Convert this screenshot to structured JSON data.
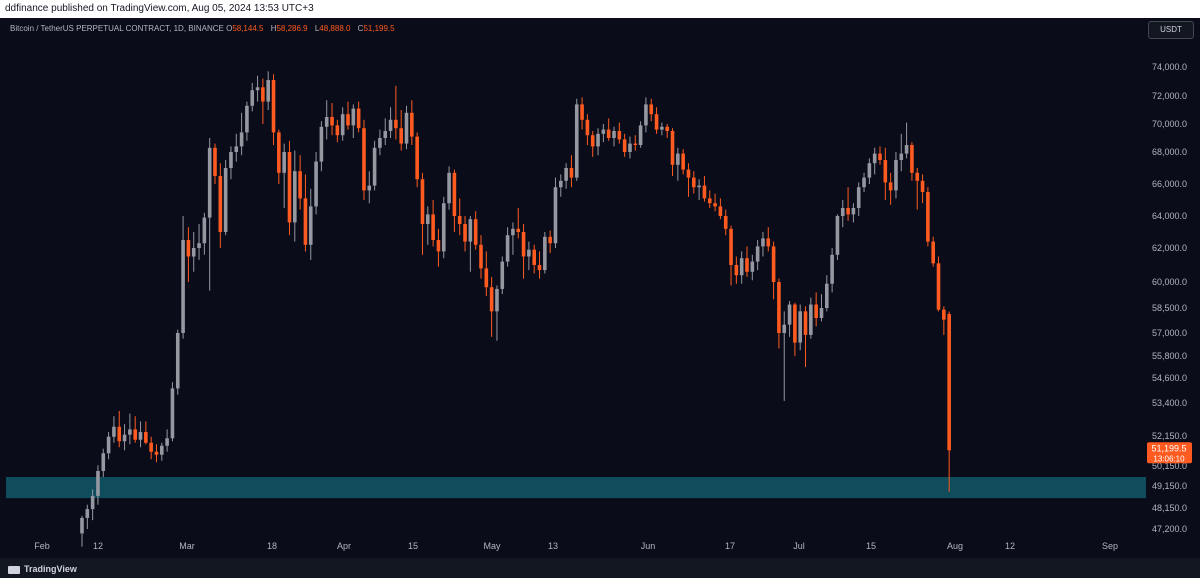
{
  "header": {
    "published_text": "ddfinance published on TradingView.com, Aug 05, 2024 13:53 UTC+3"
  },
  "legend": {
    "symbol": "Bitcoin / TetherUS PERPETUAL CONTRACT, 1D, BINANCE",
    "open_label": "O",
    "open": "58,144.5",
    "high_label": "H",
    "high": "58,286.9",
    "low_label": "L",
    "low": "48,888.0",
    "close_label": "C",
    "close": "51,199.5"
  },
  "currency": "USDT",
  "price_tag": {
    "price": "51,199.5",
    "countdown": "13:06:10"
  },
  "footer": {
    "brand": "TradingView"
  },
  "colors": {
    "up": "#9598a1",
    "down": "#ff5a1f",
    "zone": "#0f4c5c",
    "background": "#0b0c1a"
  },
  "chart_data": {
    "type": "candlestick",
    "title": "Bitcoin / TetherUS PERPETUAL CONTRACT, 1D, BINANCE",
    "x_tick_labels": [
      "Feb",
      "12",
      "Mar",
      "18",
      "Apr",
      "15",
      "May",
      "13",
      "Jun",
      "17",
      "Jul",
      "15",
      "Aug",
      "12",
      "Sep"
    ],
    "y_tick_labels": [
      "74,000.0",
      "72,000.0",
      "70,000.0",
      "68,000.0",
      "66,000.0",
      "64,000.0",
      "62,000.0",
      "60,000.0",
      "58,500.0",
      "57,000.0",
      "55,800.0",
      "54,600.0",
      "53,400.0",
      "52,150.0",
      "50,150.0",
      "49,150.0",
      "48,150.0",
      "47,200.0"
    ],
    "support_zone": [
      48600,
      49600
    ],
    "ohlc": [
      [
        47000,
        47800,
        46400,
        47700
      ],
      [
        47700,
        48300,
        47200,
        48100
      ],
      [
        48100,
        49000,
        47600,
        48700
      ],
      [
        48700,
        50200,
        48300,
        49900
      ],
      [
        49900,
        51300,
        49600,
        51000
      ],
      [
        51000,
        52300,
        50600,
        52100
      ],
      [
        52100,
        52900,
        51700,
        52500
      ],
      [
        52500,
        53100,
        51400,
        51800
      ],
      [
        51800,
        52600,
        51200,
        52200
      ],
      [
        52200,
        53000,
        51600,
        52400
      ],
      [
        52400,
        52900,
        51700,
        51900
      ],
      [
        51900,
        52700,
        51400,
        52300
      ],
      [
        52300,
        52700,
        51600,
        51700
      ],
      [
        51700,
        52100,
        50600,
        51100
      ],
      [
        51100,
        51600,
        50400,
        50900
      ],
      [
        50900,
        51700,
        50500,
        51500
      ],
      [
        51500,
        52400,
        51100,
        52000
      ],
      [
        52000,
        54400,
        51800,
        54100
      ],
      [
        54100,
        57200,
        53800,
        57000
      ],
      [
        57000,
        64000,
        56700,
        62500
      ],
      [
        62500,
        63300,
        60000,
        61500
      ],
      [
        61500,
        63000,
        60600,
        62000
      ],
      [
        62000,
        63500,
        61300,
        62300
      ],
      [
        62300,
        64200,
        61600,
        63900
      ],
      [
        63900,
        69000,
        59500,
        68300
      ],
      [
        68300,
        68600,
        66000,
        66500
      ],
      [
        66500,
        67300,
        62000,
        63000
      ],
      [
        63000,
        67500,
        62800,
        67000
      ],
      [
        67000,
        68400,
        66300,
        68000
      ],
      [
        68000,
        69300,
        67400,
        68400
      ],
      [
        68400,
        70800,
        67800,
        69400
      ],
      [
        69400,
        71600,
        68800,
        71300
      ],
      [
        71300,
        72900,
        70900,
        72400
      ],
      [
        72400,
        73400,
        71600,
        72600
      ],
      [
        72600,
        73200,
        70000,
        71600
      ],
      [
        71600,
        73700,
        71000,
        73100
      ],
      [
        73100,
        73500,
        68500,
        69400
      ],
      [
        69400,
        69600,
        66000,
        66700
      ],
      [
        66700,
        68600,
        64500,
        68000
      ],
      [
        68000,
        68800,
        62800,
        63600
      ],
      [
        63600,
        68100,
        62400,
        66800
      ],
      [
        66800,
        67800,
        64400,
        65100
      ],
      [
        65100,
        66600,
        61800,
        62200
      ],
      [
        62200,
        65700,
        61300,
        64600
      ],
      [
        64600,
        68000,
        64100,
        67400
      ],
      [
        67400,
        70200,
        66800,
        69800
      ],
      [
        69800,
        71700,
        68900,
        70500
      ],
      [
        70500,
        71500,
        69200,
        69900
      ],
      [
        69900,
        70300,
        68700,
        69200
      ],
      [
        69200,
        71200,
        68800,
        70700
      ],
      [
        70700,
        71600,
        69600,
        69900
      ],
      [
        69900,
        71400,
        69000,
        71100
      ],
      [
        71100,
        71600,
        69400,
        69700
      ],
      [
        69700,
        70300,
        65000,
        65600
      ],
      [
        65600,
        66800,
        64800,
        65900
      ],
      [
        65900,
        68800,
        65600,
        68300
      ],
      [
        68300,
        69600,
        67800,
        69000
      ],
      [
        69000,
        70400,
        68500,
        69500
      ],
      [
        69500,
        71200,
        69000,
        70300
      ],
      [
        70300,
        72700,
        68900,
        69700
      ],
      [
        69700,
        71000,
        68100,
        68600
      ],
      [
        68600,
        71300,
        68200,
        70800
      ],
      [
        70800,
        71700,
        68500,
        69100
      ],
      [
        69100,
        69400,
        65800,
        66300
      ],
      [
        66300,
        66700,
        61600,
        63500
      ],
      [
        63500,
        64600,
        62200,
        64100
      ],
      [
        64100,
        65000,
        62100,
        62500
      ],
      [
        62500,
        63200,
        60900,
        61800
      ],
      [
        61800,
        65200,
        61400,
        64800
      ],
      [
        64800,
        67100,
        64400,
        66700
      ],
      [
        66700,
        66900,
        63000,
        64000
      ],
      [
        64000,
        65100,
        62800,
        63500
      ],
      [
        63500,
        64000,
        61800,
        62400
      ],
      [
        62400,
        64000,
        60600,
        63800
      ],
      [
        63800,
        64300,
        61900,
        62200
      ],
      [
        62200,
        62800,
        60200,
        60800
      ],
      [
        60800,
        61800,
        59200,
        59700
      ],
      [
        59700,
        60300,
        56800,
        58300
      ],
      [
        58300,
        59800,
        56600,
        59600
      ],
      [
        59600,
        61500,
        59300,
        61200
      ],
      [
        61200,
        63300,
        60900,
        62800
      ],
      [
        62800,
        63600,
        61600,
        63200
      ],
      [
        63200,
        64500,
        62600,
        63000
      ],
      [
        63000,
        63500,
        60200,
        61500
      ],
      [
        61500,
        62400,
        60700,
        61900
      ],
      [
        61900,
        62200,
        60500,
        61000
      ],
      [
        61000,
        61800,
        60200,
        60700
      ],
      [
        60700,
        63000,
        60500,
        62700
      ],
      [
        62700,
        63100,
        61700,
        62300
      ],
      [
        62300,
        66400,
        62000,
        65800
      ],
      [
        65800,
        66600,
        65200,
        66200
      ],
      [
        66200,
        67300,
        65700,
        67000
      ],
      [
        67000,
        67800,
        65800,
        66400
      ],
      [
        66400,
        71800,
        66200,
        71400
      ],
      [
        71400,
        71900,
        69600,
        70300
      ],
      [
        70300,
        70700,
        68500,
        69200
      ],
      [
        69200,
        69500,
        67700,
        68400
      ],
      [
        68400,
        69700,
        67800,
        69300
      ],
      [
        69300,
        70000,
        68700,
        69600
      ],
      [
        69600,
        70400,
        68800,
        69000
      ],
      [
        69000,
        69800,
        68400,
        69500
      ],
      [
        69500,
        70100,
        68600,
        68900
      ],
      [
        68900,
        69300,
        67700,
        68000
      ],
      [
        68000,
        69100,
        67600,
        68600
      ],
      [
        68600,
        69200,
        68100,
        68500
      ],
      [
        68500,
        70200,
        68300,
        69900
      ],
      [
        69900,
        71900,
        69400,
        71400
      ],
      [
        71400,
        71800,
        70200,
        70700
      ],
      [
        70700,
        71200,
        69300,
        69600
      ],
      [
        69600,
        70100,
        69200,
        69800
      ],
      [
        69800,
        70000,
        69000,
        69500
      ],
      [
        69500,
        69700,
        66500,
        67200
      ],
      [
        67200,
        68300,
        66200,
        67900
      ],
      [
        67900,
        68200,
        66600,
        66900
      ],
      [
        66900,
        67300,
        65200,
        66400
      ],
      [
        66400,
        66800,
        65400,
        65800
      ],
      [
        65800,
        66300,
        65000,
        65900
      ],
      [
        65900,
        66500,
        64900,
        65100
      ],
      [
        65100,
        65600,
        64500,
        64800
      ],
      [
        64800,
        65400,
        64300,
        64600
      ],
      [
        64600,
        65100,
        63800,
        64000
      ],
      [
        64000,
        64400,
        62800,
        63200
      ],
      [
        63200,
        63400,
        59800,
        61000
      ],
      [
        61000,
        61500,
        59900,
        60400
      ],
      [
        60400,
        61800,
        59900,
        61400
      ],
      [
        61400,
        62100,
        60300,
        60600
      ],
      [
        60600,
        61600,
        60100,
        61200
      ],
      [
        61200,
        62500,
        60700,
        62100
      ],
      [
        62100,
        63000,
        61500,
        62600
      ],
      [
        62600,
        63300,
        61800,
        62100
      ],
      [
        62100,
        62400,
        59000,
        60000
      ],
      [
        60000,
        60200,
        56200,
        57000
      ],
      [
        57000,
        58300,
        53500,
        57500
      ],
      [
        57500,
        58900,
        56800,
        58700
      ],
      [
        58700,
        58800,
        55800,
        56500
      ],
      [
        56500,
        58700,
        56100,
        58300
      ],
      [
        58300,
        58600,
        55200,
        56900
      ],
      [
        56900,
        59100,
        56700,
        58700
      ],
      [
        58700,
        59400,
        57400,
        57900
      ],
      [
        57900,
        59300,
        57700,
        58500
      ],
      [
        58500,
        60400,
        58300,
        59900
      ],
      [
        59900,
        62000,
        59400,
        61600
      ],
      [
        61600,
        64100,
        61300,
        64000
      ],
      [
        64000,
        65000,
        63300,
        64500
      ],
      [
        64500,
        65800,
        63700,
        64100
      ],
      [
        64100,
        64800,
        63600,
        64500
      ],
      [
        64500,
        66100,
        64000,
        65800
      ],
      [
        65800,
        66700,
        65500,
        66400
      ],
      [
        66400,
        67600,
        66000,
        67300
      ],
      [
        67300,
        68300,
        66600,
        67900
      ],
      [
        67900,
        68400,
        67200,
        67500
      ],
      [
        67500,
        68300,
        65000,
        66100
      ],
      [
        66100,
        66700,
        64700,
        65600
      ],
      [
        65600,
        68000,
        65100,
        67500
      ],
      [
        67500,
        69300,
        66800,
        67900
      ],
      [
        67900,
        70100,
        67600,
        68500
      ],
      [
        68500,
        68700,
        66200,
        66700
      ],
      [
        66700,
        67000,
        64400,
        66200
      ],
      [
        66200,
        66600,
        64800,
        65500
      ],
      [
        65500,
        65800,
        62100,
        62400
      ],
      [
        62400,
        62700,
        60900,
        61100
      ],
      [
        61100,
        61500,
        58300,
        58400
      ],
      [
        58400,
        58600,
        56900,
        57800
      ],
      [
        58144.5,
        58286.9,
        48888.0,
        51199.5
      ]
    ]
  }
}
